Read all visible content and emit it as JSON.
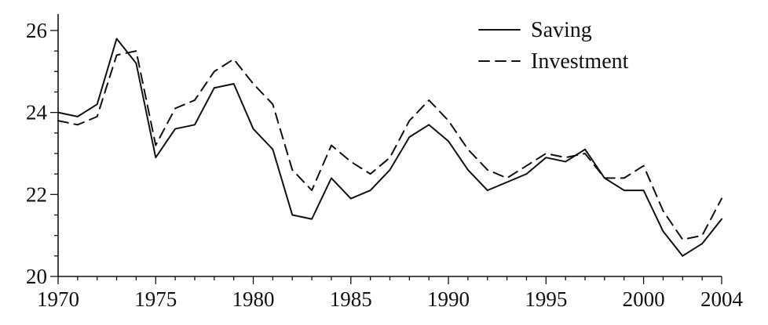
{
  "chart_data": {
    "type": "line",
    "title": "",
    "xlabel": "",
    "ylabel": "",
    "x": [
      1970,
      1971,
      1972,
      1973,
      1974,
      1975,
      1976,
      1977,
      1978,
      1979,
      1980,
      1981,
      1982,
      1983,
      1984,
      1985,
      1986,
      1987,
      1988,
      1989,
      1990,
      1991,
      1992,
      1993,
      1994,
      1995,
      1996,
      1997,
      1998,
      1999,
      2000,
      2001,
      2002,
      2003,
      2004
    ],
    "xlim": [
      1970,
      2004
    ],
    "ylim": [
      20,
      26.4
    ],
    "x_ticks": [
      1970,
      1975,
      1980,
      1985,
      1990,
      1995,
      2000,
      2004
    ],
    "x_tick_labels": [
      "1970",
      "1975",
      "1980",
      "1985",
      "1990",
      "1995",
      "2000",
      "2004"
    ],
    "y_ticks": [
      20,
      22,
      24,
      26
    ],
    "y_tick_labels": [
      "20",
      "22",
      "24",
      "26"
    ],
    "grid": false,
    "legend_position": "top-right",
    "series": [
      {
        "name": "Saving",
        "style": "solid",
        "color": "#111111",
        "values": [
          24.0,
          23.9,
          24.2,
          25.8,
          25.2,
          22.9,
          23.6,
          23.7,
          24.6,
          24.7,
          23.6,
          23.1,
          21.5,
          21.4,
          22.4,
          21.9,
          22.1,
          22.6,
          23.4,
          23.7,
          23.3,
          22.6,
          22.1,
          22.3,
          22.5,
          22.9,
          22.8,
          23.1,
          22.4,
          22.1,
          22.1,
          21.1,
          20.5,
          20.8,
          21.4
        ]
      },
      {
        "name": "Investment",
        "style": "dashed",
        "color": "#111111",
        "values": [
          23.8,
          23.7,
          23.9,
          25.4,
          25.5,
          23.2,
          24.1,
          24.3,
          25.0,
          25.3,
          24.7,
          24.2,
          22.6,
          22.1,
          23.2,
          22.8,
          22.5,
          22.9,
          23.8,
          24.3,
          23.8,
          23.1,
          22.6,
          22.4,
          22.7,
          23.0,
          22.9,
          23.0,
          22.4,
          22.4,
          22.7,
          21.6,
          20.9,
          21.0,
          21.9
        ]
      }
    ]
  }
}
